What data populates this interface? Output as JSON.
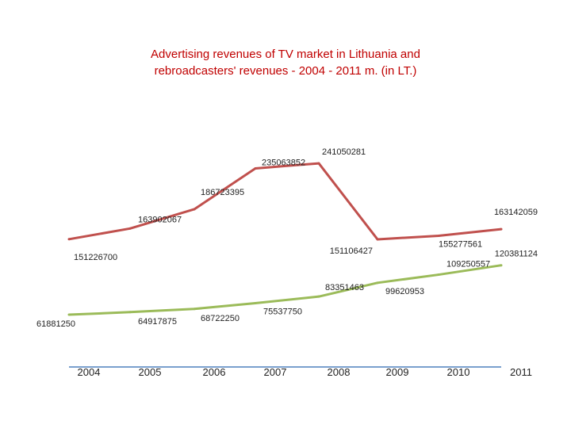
{
  "chart_data": {
    "type": "line",
    "title_line1": "Advertising revenues of TV market in Lithuania and",
    "title_line2": "rebroadcasters' revenues - 2004 - 2011 m. (in LT.)",
    "categories": [
      "2004",
      "2005",
      "2006",
      "2007",
      "2008",
      "2009",
      "2010",
      "2011"
    ],
    "series": [
      {
        "values": [
          151226700,
          163902067,
          186723395,
          235063852,
          241050281,
          151106427,
          155277561,
          163142059
        ],
        "labels": [
          "151226700",
          "163902067",
          "186723395",
          "235063852",
          "241050281",
          "151106427",
          "155277561",
          "163142059"
        ],
        "color": "#c0504d"
      },
      {
        "values": [
          61881250,
          64917875,
          68722250,
          75537750,
          83351463,
          99620953,
          109250557,
          120381124
        ],
        "labels": [
          "61881250",
          "64917875",
          "68722250",
          "75537750",
          "83351463",
          "99620953",
          "109250557",
          "120381124"
        ],
        "color": "#9bbb59"
      }
    ],
    "axis_color": "#4f81bd",
    "xlabel": "",
    "ylabel": "",
    "ylim": [
      0,
      260000000
    ],
    "grid": false,
    "legend": "none"
  }
}
